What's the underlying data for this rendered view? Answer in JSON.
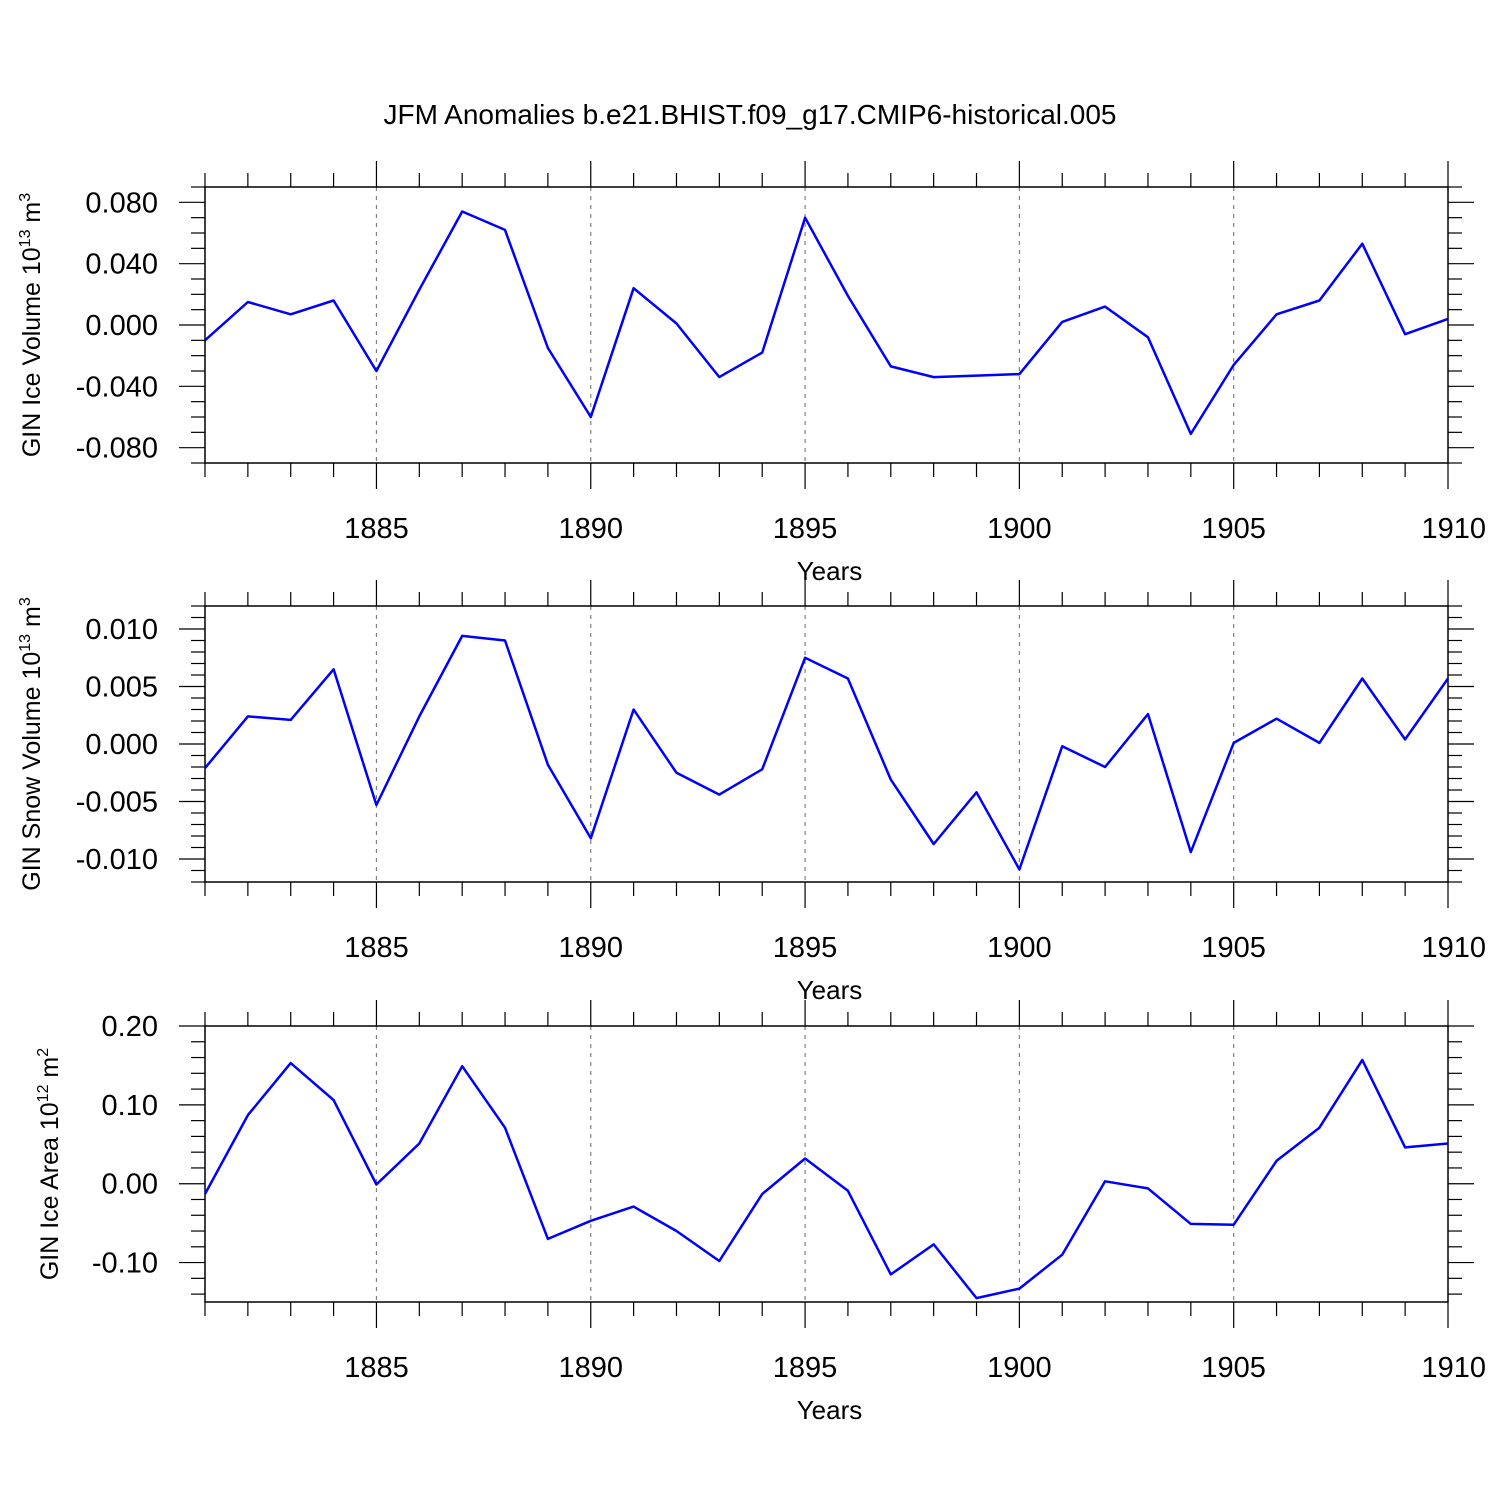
{
  "title": "JFM Anomalies b.e21.BHIST.f09_g17.CMIP6-historical.005",
  "line_color": "#0000ff",
  "axis_color": "#000000",
  "grid_color": "#808080",
  "chart_data": [
    {
      "type": "line",
      "ylabel_main": "GIN Ice Volume 10",
      "ylabel_exp1": "13",
      "ylabel_mid": " m",
      "ylabel_exp2": "3",
      "xlabel": "Years",
      "xlim": [
        1881,
        1910
      ],
      "ylim": [
        -0.09,
        0.09
      ],
      "xticks": [
        1885,
        1890,
        1895,
        1900,
        1905,
        1910
      ],
      "xtick_labels": [
        "1885",
        "1890",
        "1895",
        "1900",
        "1905",
        "1910"
      ],
      "yticks": [
        -0.08,
        -0.04,
        0.0,
        0.04,
        0.08
      ],
      "ytick_labels": [
        "-0.080",
        "-0.040",
        "0.000",
        "0.040",
        "0.080"
      ],
      "yminor_step": 0.01,
      "vertical_grid": true,
      "x": [
        1881,
        1882,
        1883,
        1884,
        1885,
        1886,
        1887,
        1888,
        1889,
        1890,
        1891,
        1892,
        1893,
        1894,
        1895,
        1896,
        1897,
        1898,
        1899,
        1900,
        1901,
        1902,
        1903,
        1904,
        1905,
        1906,
        1907,
        1908,
        1909,
        1910
      ],
      "y": [
        -0.01,
        0.015,
        0.007,
        0.016,
        -0.03,
        0.023,
        0.074,
        0.062,
        -0.015,
        -0.06,
        0.024,
        0.001,
        -0.034,
        -0.018,
        0.07,
        0.019,
        -0.027,
        -0.034,
        -0.033,
        -0.032,
        0.002,
        0.012,
        -0.008,
        -0.071,
        -0.026,
        0.007,
        0.016,
        0.053,
        -0.006,
        0.004
      ]
    },
    {
      "type": "line",
      "ylabel_main": "GIN Snow Volume 10",
      "ylabel_exp1": "13",
      "ylabel_mid": " m",
      "ylabel_exp2": "3",
      "xlabel": "Years",
      "xlim": [
        1881,
        1910
      ],
      "ylim": [
        -0.012,
        0.012
      ],
      "xticks": [
        1885,
        1890,
        1895,
        1900,
        1905,
        1910
      ],
      "xtick_labels": [
        "1885",
        "1890",
        "1895",
        "1900",
        "1905",
        "1910"
      ],
      "yticks": [
        -0.01,
        -0.005,
        0.0,
        0.005,
        0.01
      ],
      "ytick_labels": [
        "-0.010",
        "-0.005",
        "0.000",
        "0.005",
        "0.010"
      ],
      "yminor_step": 0.001,
      "vertical_grid": true,
      "x": [
        1881,
        1882,
        1883,
        1884,
        1885,
        1886,
        1887,
        1888,
        1889,
        1890,
        1891,
        1892,
        1893,
        1894,
        1895,
        1896,
        1897,
        1898,
        1899,
        1900,
        1901,
        1902,
        1903,
        1904,
        1905,
        1906,
        1907,
        1908,
        1909,
        1910
      ],
      "y": [
        -0.0021,
        0.0024,
        0.0021,
        0.0065,
        -0.0053,
        0.0024,
        0.0094,
        0.009,
        -0.0018,
        -0.0082,
        0.003,
        -0.0025,
        -0.0044,
        -0.0022,
        0.0075,
        0.0057,
        -0.0031,
        -0.0087,
        -0.0042,
        -0.0109,
        -0.0002,
        -0.002,
        0.0026,
        -0.0094,
        0.0001,
        0.0022,
        0.0001,
        0.0057,
        0.0004,
        0.0057
      ]
    },
    {
      "type": "line",
      "ylabel_main": "GIN Ice Area 10",
      "ylabel_exp1": "12",
      "ylabel_mid": " m",
      "ylabel_exp2": "2",
      "xlabel": "Years",
      "xlim": [
        1881,
        1910
      ],
      "ylim": [
        -0.15,
        0.2
      ],
      "xticks": [
        1885,
        1890,
        1895,
        1900,
        1905,
        1910
      ],
      "xtick_labels": [
        "1885",
        "1890",
        "1895",
        "1900",
        "1905",
        "1910"
      ],
      "yticks": [
        -0.1,
        0.0,
        0.1,
        0.2
      ],
      "ytick_labels": [
        "-0.10",
        "0.00",
        "0.10",
        "0.20"
      ],
      "yminor_step": 0.02,
      "vertical_grid": true,
      "x": [
        1881,
        1882,
        1883,
        1884,
        1885,
        1886,
        1887,
        1888,
        1889,
        1890,
        1891,
        1892,
        1893,
        1894,
        1895,
        1896,
        1897,
        1898,
        1899,
        1900,
        1901,
        1902,
        1903,
        1904,
        1905,
        1906,
        1907,
        1908,
        1909,
        1910
      ],
      "y": [
        -0.013,
        0.087,
        0.153,
        0.106,
        -0.001,
        0.051,
        0.149,
        0.071,
        -0.07,
        -0.047,
        -0.029,
        -0.06,
        -0.098,
        -0.013,
        0.032,
        -0.009,
        -0.115,
        -0.077,
        -0.145,
        -0.133,
        -0.09,
        0.003,
        -0.006,
        -0.051,
        -0.052,
        0.029,
        0.071,
        0.157,
        0.046,
        0.051
      ]
    }
  ]
}
